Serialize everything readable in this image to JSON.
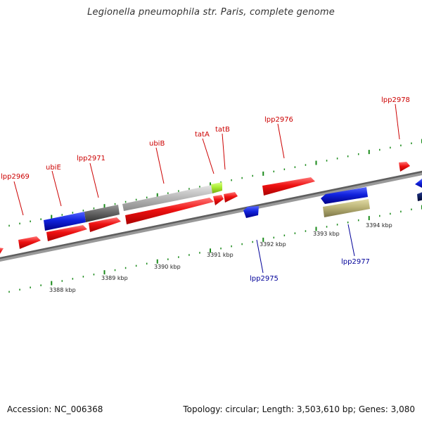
{
  "title": "Legionella pneumophila str. Paris, complete genome",
  "footer": {
    "accession": "Accession: NC_006368",
    "summary": "Topology: circular; Length: 3,503,610 bp; Genes: 3,080"
  },
  "colors": {
    "forward_gene": "#ee1111",
    "reverse_gene": "#1122dd",
    "forward_label": "#cc0000",
    "reverse_label": "#000099",
    "backbone": "#777777",
    "tick": "#1a8a1a",
    "operon_grey": "#666666",
    "light_grey": "#bbbbbb",
    "lime": "#aaee33",
    "khaki": "#bbb477",
    "navy": "#112266"
  },
  "scale": {
    "ticks": [
      "3388 kbp",
      "3389 kbp",
      "3390 kbp",
      "3391 kbp",
      "3392 kbp",
      "3393 kbp",
      "3394 kbp"
    ]
  },
  "genes": [
    {
      "name": "lpp2969",
      "strand": "forward"
    },
    {
      "name": "ubiE",
      "strand": "forward"
    },
    {
      "name": "lpp2971",
      "strand": "forward"
    },
    {
      "name": "ubiB",
      "strand": "forward"
    },
    {
      "name": "tatA",
      "strand": "forward"
    },
    {
      "name": "tatB",
      "strand": "forward"
    },
    {
      "name": "lpp2976",
      "strand": "forward"
    },
    {
      "name": "lpp2978",
      "strand": "forward"
    },
    {
      "name": "lpp2975",
      "strand": "reverse"
    },
    {
      "name": "lpp2977",
      "strand": "reverse"
    }
  ]
}
